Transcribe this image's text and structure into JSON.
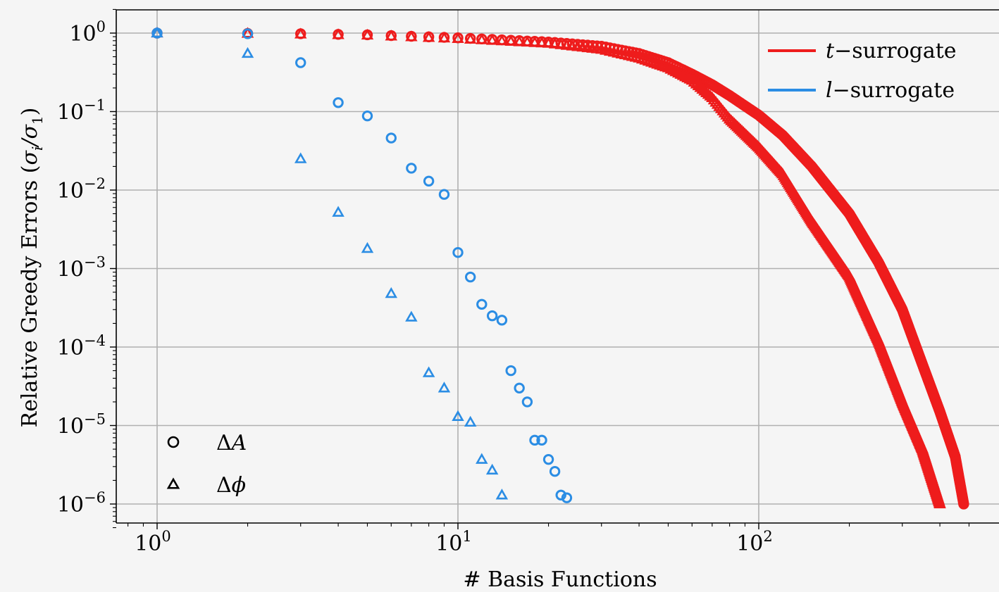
{
  "chart_data": {
    "type": "scatter",
    "title": "",
    "xlabel": "# Basis Functions",
    "ylabel": "Relative Greedy Errors (σ_i/σ_1)",
    "x_scale": "log",
    "y_scale": "log",
    "xlim": [
      0.75,
      570
    ],
    "ylim": [
      5e-07,
      2.0
    ],
    "x_tick_labels": [
      "10^0",
      "10^1",
      "10^2"
    ],
    "y_tick_labels": [
      "10^0",
      "10^-1",
      "10^-2",
      "10^-3",
      "10^-4",
      "10^-5",
      "10^-6"
    ],
    "grid": true,
    "legend_color": {
      "position": "top-right",
      "entries": [
        {
          "label": "t−surrogate",
          "var": "t",
          "rest": "−surrogate",
          "color": "#ee1c1c"
        },
        {
          "label": "l−surrogate",
          "var": "l",
          "rest": "−surrogate",
          "color": "#2b8de4"
        }
      ]
    },
    "legend_marker": {
      "position": "bottom-left",
      "entries": [
        {
          "label": "ΔA",
          "greek": "Δ",
          "var": "A",
          "marker": "circle"
        },
        {
          "label": "Δϕ",
          "greek": "Δ",
          "var": "ϕ",
          "marker": "triangle"
        }
      ]
    },
    "series": [
      {
        "name": "t−surrogate ΔA",
        "color": "#ee1c1c",
        "marker": "circle",
        "x": [
          1,
          2,
          3,
          5,
          10,
          20,
          30,
          40,
          50,
          60,
          70,
          80,
          100,
          120,
          150,
          200,
          250,
          300,
          350,
          400,
          450,
          480
        ],
        "y": [
          1.0,
          0.99,
          0.98,
          0.95,
          0.87,
          0.77,
          0.68,
          0.55,
          0.42,
          0.3,
          0.22,
          0.16,
          0.09,
          0.05,
          0.02,
          0.005,
          0.0012,
          0.0003,
          6e-05,
          1.5e-05,
          4e-06,
          1e-06
        ]
      },
      {
        "name": "t−surrogate Δϕ",
        "color": "#ee1c1c",
        "marker": "triangle",
        "x": [
          1,
          2,
          3,
          5,
          10,
          20,
          30,
          40,
          50,
          60,
          70,
          80,
          100,
          120,
          150,
          200,
          250,
          300,
          350,
          400
        ],
        "y": [
          1.0,
          0.99,
          0.97,
          0.94,
          0.85,
          0.74,
          0.62,
          0.48,
          0.36,
          0.25,
          0.15,
          0.08,
          0.035,
          0.016,
          0.004,
          0.0008,
          0.00012,
          2e-05,
          5e-06,
          1e-06
        ]
      },
      {
        "name": "l−surrogate ΔA",
        "color": "#2b8de4",
        "marker": "circle",
        "x": [
          1,
          2,
          3,
          4,
          5,
          6,
          7,
          8,
          9,
          10,
          11,
          12,
          13,
          14,
          15,
          16,
          17,
          18,
          19,
          20,
          21,
          22,
          23
        ],
        "y": [
          1.0,
          0.98,
          0.42,
          0.13,
          0.088,
          0.046,
          0.019,
          0.013,
          0.0088,
          0.0016,
          0.00078,
          0.00035,
          0.00025,
          0.00022,
          5e-05,
          3e-05,
          2e-05,
          6.5e-06,
          6.5e-06,
          3.7e-06,
          2.6e-06,
          1.3e-06,
          1.2e-06
        ]
      },
      {
        "name": "l−surrogate Δϕ",
        "color": "#2b8de4",
        "marker": "triangle",
        "x": [
          1,
          2,
          3,
          4,
          5,
          6,
          7,
          8,
          9,
          10,
          11,
          12,
          13,
          14
        ],
        "y": [
          1.0,
          0.55,
          0.025,
          0.0052,
          0.0018,
          0.00048,
          0.00024,
          4.7e-05,
          3e-05,
          1.3e-05,
          1.1e-05,
          3.7e-06,
          2.7e-06,
          1.3e-06
        ]
      }
    ]
  }
}
